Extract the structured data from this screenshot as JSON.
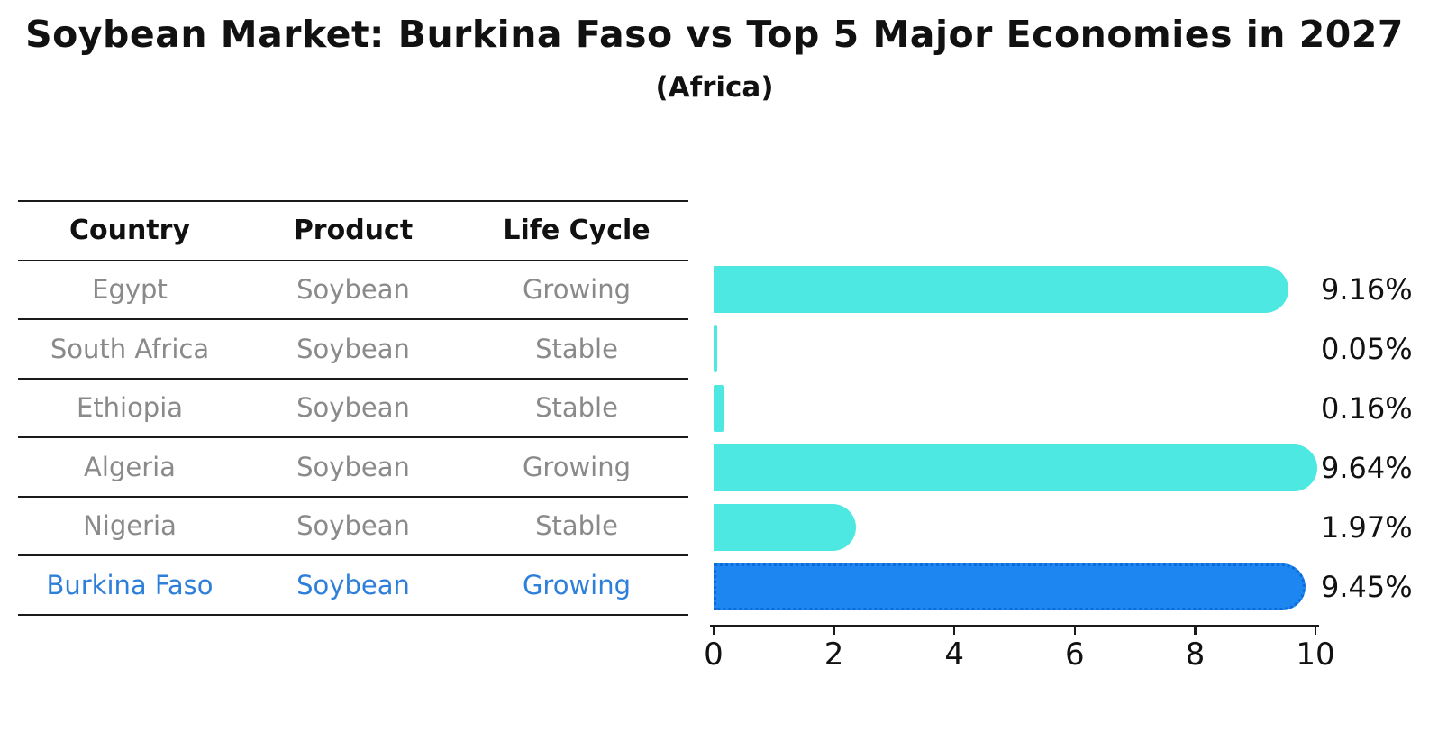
{
  "title": "Soybean Market: Burkina Faso vs Top 5 Major Economies in 2027",
  "subtitle": "(Africa)",
  "table": {
    "headers": [
      "Country",
      "Product",
      "Life Cycle"
    ],
    "rows": [
      {
        "country": "Egypt",
        "product": "Soybean",
        "life_cycle": "Growing",
        "highlighted": false
      },
      {
        "country": "South Africa",
        "product": "Soybean",
        "life_cycle": "Stable",
        "highlighted": false
      },
      {
        "country": "Ethiopia",
        "product": "Soybean",
        "life_cycle": "Stable",
        "highlighted": false
      },
      {
        "country": "Algeria",
        "product": "Soybean",
        "life_cycle": "Growing",
        "highlighted": false
      },
      {
        "country": "Nigeria",
        "product": "Soybean",
        "life_cycle": "Stable",
        "highlighted": false
      },
      {
        "country": "Burkina Faso",
        "product": "Soybean",
        "life_cycle": "Growing",
        "highlighted": true
      }
    ]
  },
  "chart_data": {
    "type": "bar",
    "orientation": "horizontal",
    "title": "Soybean Market: Burkina Faso vs Top 5 Major Economies in 2027 (Africa)",
    "categories": [
      "Egypt",
      "South Africa",
      "Ethiopia",
      "Algeria",
      "Nigeria",
      "Burkina Faso"
    ],
    "values": [
      9.16,
      0.05,
      0.16,
      9.64,
      1.97,
      9.45
    ],
    "value_labels": [
      "9.16%",
      "0.05%",
      "0.16%",
      "9.64%",
      "1.97%",
      "9.45%"
    ],
    "xlim": [
      0,
      10
    ],
    "xticks": [
      "0",
      "2",
      "4",
      "6",
      "8",
      "10"
    ],
    "grid": false,
    "legend": "none",
    "bar_color": "#4de8e2",
    "highlight_index": 5,
    "highlight_bar_color": "#1e86f0",
    "highlight_border_color": "#0d6bd8",
    "highlight_text_color": "#2e7fd9"
  }
}
